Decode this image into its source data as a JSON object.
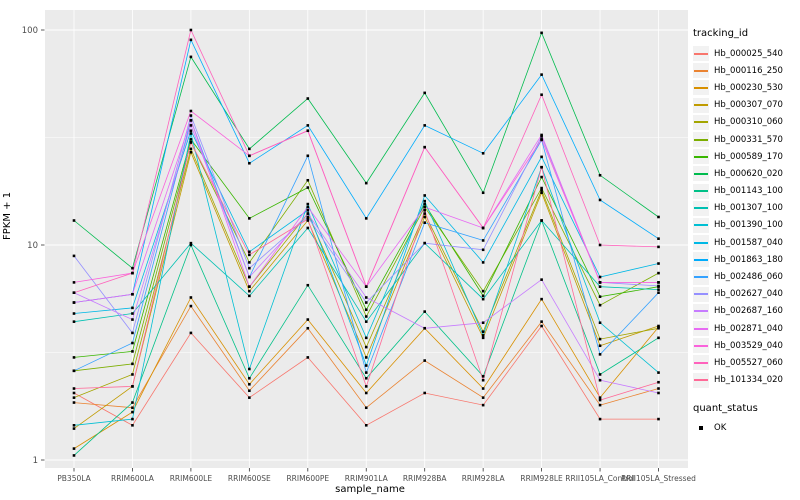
{
  "chart_data": {
    "type": "line",
    "title": "",
    "xlabel": "sample_name",
    "ylabel": "FPKM + 1",
    "y_scale": "log10",
    "ylim": [
      1,
      120
    ],
    "y_major_ticks": [
      1,
      10,
      100
    ],
    "y_minor_gridlines": [
      3.1623,
      31.623
    ],
    "grid": "on",
    "panel_background": "#EBEBEB",
    "gridline_color": "#FFFFFF",
    "tick_label_color": "#4D4D4D",
    "point_marker": "black-square",
    "legend_position": "right",
    "categories": [
      "PB350LA",
      "RRIM600LA",
      "RRIM600LE",
      "RRIM600SE",
      "RRIM600PE",
      "RRIM901LA",
      "RRIM928BA",
      "RRIM928LA",
      "RRIM928LE",
      "RRII105LA_Control",
      "RRII105LA_Stressed"
    ],
    "series": [
      {
        "name": "Hb_000025_540",
        "color": "#F8766D",
        "values": [
          2.05,
          1.45,
          3.9,
          1.95,
          3.0,
          1.45,
          2.05,
          1.8,
          4.2,
          1.55,
          1.55
        ]
      },
      {
        "name": "Hb_000116_250",
        "color": "#EA8331",
        "values": [
          1.85,
          1.75,
          5.2,
          2.1,
          4.1,
          1.75,
          2.9,
          1.95,
          4.4,
          1.8,
          2.15
        ]
      },
      {
        "name": "Hb_000230_530",
        "color": "#D89000",
        "values": [
          1.13,
          1.67,
          5.7,
          2.25,
          4.5,
          2.05,
          4.1,
          2.15,
          5.6,
          1.95,
          4.15
        ]
      },
      {
        "name": "Hb_000307_070",
        "color": "#C09B00",
        "values": [
          1.4,
          2.2,
          27,
          6.1,
          13,
          3.0,
          13.5,
          3.7,
          17.5,
          3.4,
          4.2
        ]
      },
      {
        "name": "Hb_000310_060",
        "color": "#A3A500",
        "values": [
          1.95,
          2.5,
          28,
          6.4,
          14,
          3.35,
          14,
          3.95,
          18,
          3.65,
          4.1
        ]
      },
      {
        "name": "Hb_000331_570",
        "color": "#7CAE00",
        "values": [
          2.6,
          2.8,
          30,
          8.3,
          20,
          4.65,
          15,
          6.1,
          18.4,
          5.25,
          7.4
        ]
      },
      {
        "name": "Hb_000589_170",
        "color": "#39B600",
        "values": [
          3.0,
          3.2,
          31,
          13.3,
          18.5,
          5.0,
          15.5,
          5.8,
          20.7,
          5.75,
          6.4
        ]
      },
      {
        "name": "Hb_000620_020",
        "color": "#00BB4E",
        "values": [
          13,
          7.8,
          75,
          28,
          48,
          19.4,
          51,
          17.5,
          97,
          21.1,
          13.5
        ]
      },
      {
        "name": "Hb_001143_100",
        "color": "#00C087",
        "values": [
          1.05,
          1.85,
          10,
          2.4,
          6.5,
          2.4,
          4.9,
          2.45,
          13,
          2.5,
          3.7
        ]
      },
      {
        "name": "Hb_001307_100",
        "color": "#00C0B2",
        "values": [
          4.4,
          4.8,
          10.2,
          5.8,
          12,
          4.4,
          10.2,
          5.6,
          13,
          6.4,
          6.2
        ]
      },
      {
        "name": "Hb_001390_100",
        "color": "#00BFD3",
        "values": [
          1.45,
          1.55,
          33,
          2.65,
          15.5,
          3.7,
          16,
          3.8,
          23,
          4.35,
          2.55
        ]
      },
      {
        "name": "Hb_001587_040",
        "color": "#00B8E5",
        "values": [
          4.8,
          5.1,
          34,
          9.3,
          14.5,
          2.75,
          17,
          8.3,
          25.7,
          7.1,
          8.2
        ]
      },
      {
        "name": "Hb_001863_180",
        "color": "#00ACFC",
        "values": [
          5.4,
          5.9,
          90,
          24,
          36,
          13.3,
          36,
          26.7,
          62,
          16.2,
          10.7
        ]
      },
      {
        "name": "Hb_002486_060",
        "color": "#35A2FF",
        "values": [
          2.6,
          3.5,
          38,
          7.1,
          26,
          2.55,
          12.7,
          10.5,
          30.8,
          3.1,
          6.0
        ]
      },
      {
        "name": "Hb_002627_040",
        "color": "#9590FF",
        "values": [
          8.9,
          3.9,
          40,
          7.8,
          13.5,
          5.4,
          10.2,
          9.5,
          32,
          6.7,
          6.45
        ]
      },
      {
        "name": "Hb_002687_160",
        "color": "#C77CFF",
        "values": [
          6.0,
          4.5,
          36,
          7.1,
          14,
          5.7,
          4.1,
          4.35,
          6.9,
          2.35,
          2.05
        ]
      },
      {
        "name": "Hb_002871_040",
        "color": "#E76BF3",
        "values": [
          5.4,
          5.9,
          38,
          6.4,
          15,
          6.4,
          15,
          12,
          32.5,
          6.7,
          6.7
        ]
      },
      {
        "name": "Hb_003529_040",
        "color": "#FA62DB",
        "values": [
          6.7,
          7.4,
          42,
          26,
          34,
          6.4,
          28.5,
          12,
          31,
          6.7,
          6.7
        ]
      },
      {
        "name": "Hb_005527_060",
        "color": "#FF62BC",
        "values": [
          6.0,
          7.4,
          100,
          26,
          34,
          6.4,
          28.5,
          12,
          50,
          10,
          9.8
        ]
      },
      {
        "name": "Hb_101334_020",
        "color": "#FF6A98",
        "values": [
          2.15,
          2.2,
          30,
          9.0,
          13.2,
          2.2,
          14.5,
          2.35,
          23,
          1.9,
          2.3
        ]
      }
    ]
  },
  "legend": {
    "title": "tracking_id"
  },
  "quant_legend": {
    "title": "quant_status",
    "items": [
      {
        "label": "OK",
        "marker": "black-square"
      }
    ]
  }
}
